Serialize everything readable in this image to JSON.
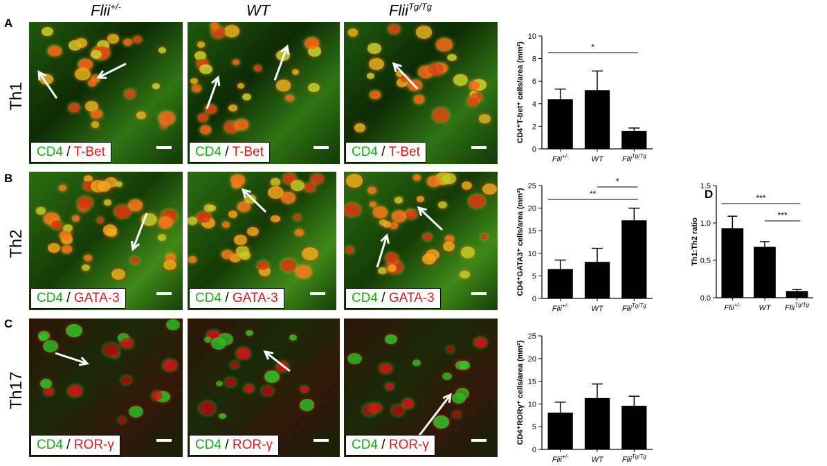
{
  "columns": [
    {
      "base": "Flii",
      "sup": "+/-"
    },
    {
      "base": "WT",
      "sup": ""
    },
    {
      "base": "Flii",
      "sup": "Tg/Tg"
    }
  ],
  "rows": [
    {
      "letter": "A",
      "label": "Th1",
      "stain_green": "CD4",
      "sep": " / ",
      "stain_red": "T-Bet",
      "theme": "th1"
    },
    {
      "letter": "B",
      "label": "Th2",
      "stain_green": "CD4",
      "sep": " / ",
      "stain_red": "GATA-3",
      "theme": "th2"
    },
    {
      "letter": "C",
      "label": "Th17",
      "stain_green": "CD4",
      "sep": " / ",
      "stain_red": "ROR-γ",
      "theme": "th17"
    }
  ],
  "panel_d_letter": "D",
  "colors": {
    "bar": "#000000",
    "green_stain": "#12b012",
    "red_stain": "#e01818"
  },
  "chart_data": [
    {
      "type": "bar",
      "ylabel": "CD4⁺T-bet⁺ cells/area (mm²)",
      "categories": [
        "Flii+/-",
        "WT",
        "FliiTg/Tg"
      ],
      "values": [
        4.4,
        5.2,
        1.6
      ],
      "errors": [
        0.9,
        1.7,
        0.25
      ],
      "ylim": [
        0,
        10
      ],
      "yticks": [
        0,
        2,
        4,
        6,
        8,
        10
      ],
      "significance": [
        {
          "from": 0,
          "to": 2,
          "label": "*"
        }
      ]
    },
    {
      "type": "bar",
      "ylabel": "CD4⁺GATA3⁺ cells/area (mm²)",
      "categories": [
        "Flii+/-",
        "WT",
        "FliiTg/Tg"
      ],
      "values": [
        6.5,
        8.1,
        17.3
      ],
      "errors": [
        2.0,
        3.0,
        2.7
      ],
      "ylim": [
        0,
        25
      ],
      "yticks": [
        0,
        5,
        10,
        15,
        20,
        25
      ],
      "significance": [
        {
          "from": 0,
          "to": 2,
          "label": "**"
        },
        {
          "from": 1,
          "to": 2,
          "label": "*"
        }
      ]
    },
    {
      "type": "bar",
      "ylabel": "CD4⁺RORγ⁺ cells/area (mm²)",
      "categories": [
        "Flii+/-",
        "WT",
        "FliiTg/Tg"
      ],
      "values": [
        8.1,
        11.3,
        9.6
      ],
      "errors": [
        2.3,
        3.1,
        2.1
      ],
      "ylim": [
        0,
        25
      ],
      "yticks": [
        0,
        5,
        10,
        15,
        20,
        25
      ],
      "significance": []
    },
    {
      "type": "bar",
      "ylabel": "Th1:Th2 ratio",
      "categories": [
        "Flii+/-",
        "WT",
        "FliiTg/Tg"
      ],
      "values": [
        0.93,
        0.68,
        0.09
      ],
      "errors": [
        0.16,
        0.07,
        0.02
      ],
      "ylim": [
        0,
        1.5
      ],
      "yticks": [
        "0.0",
        "0.5",
        "1.0",
        "1.5"
      ],
      "significance": [
        {
          "from": 0,
          "to": 2,
          "label": "***"
        },
        {
          "from": 1,
          "to": 2,
          "label": "***"
        }
      ]
    }
  ]
}
